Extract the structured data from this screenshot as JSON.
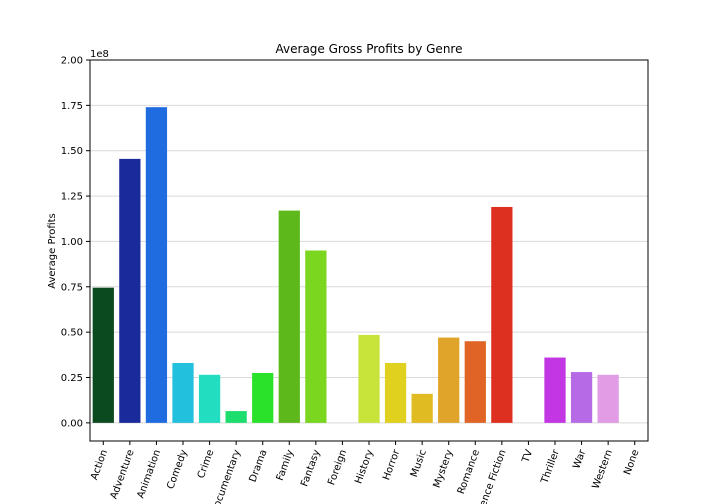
{
  "chart_data": {
    "type": "bar",
    "title": "Average Gross Profits by Genre",
    "xlabel": "",
    "ylabel": "Average Profits",
    "y_scale_label": "1e8",
    "ylim": [
      -0.1,
      2.0
    ],
    "yticks": [
      0.0,
      0.25,
      0.5,
      0.75,
      1.0,
      1.25,
      1.5,
      1.75,
      2.0
    ],
    "ytick_labels": [
      "0.00",
      "0.25",
      "0.50",
      "0.75",
      "1.00",
      "1.25",
      "1.50",
      "1.75",
      "2.00"
    ],
    "grid": "horizontal",
    "categories": [
      "Action",
      "Adventure",
      "Animation",
      "Comedy",
      "Crime",
      "Documentary",
      "Drama",
      "Family",
      "Fantasy",
      "Foreign",
      "History",
      "Horror",
      "Music",
      "Mystery",
      "Romance",
      "Science Fiction",
      "TV",
      "Thriller",
      "War",
      "Western",
      "None"
    ],
    "values": [
      0.745,
      1.455,
      1.74,
      0.33,
      0.265,
      0.065,
      0.275,
      1.17,
      0.95,
      0.0,
      0.485,
      0.33,
      0.16,
      0.47,
      0.45,
      1.19,
      0.0,
      0.36,
      0.28,
      0.265,
      0.0
    ],
    "colors": [
      "#0b4a1f",
      "#1a2a9b",
      "#1f6be0",
      "#22c0dd",
      "#22ddbf",
      "#1ddd6e",
      "#2be22b",
      "#5db81c",
      "#7ad61e",
      "#b8e01e",
      "#c8e33a",
      "#dfd11d",
      "#e0bb21",
      "#e0a42b",
      "#e06426",
      "#de3020",
      "#e21a8f",
      "#c236e3",
      "#b76ae5",
      "#e29ce5",
      "#ffffff"
    ]
  }
}
